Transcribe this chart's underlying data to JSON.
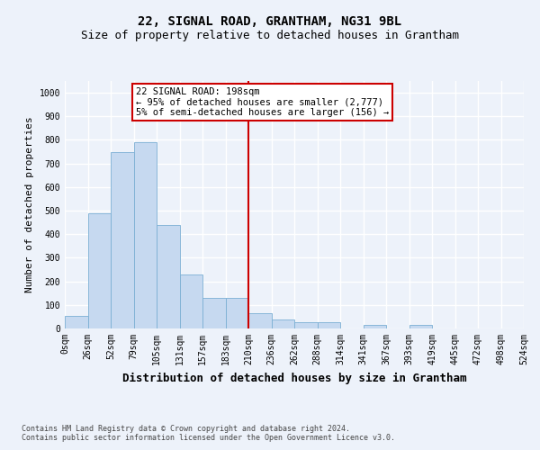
{
  "title": "22, SIGNAL ROAD, GRANTHAM, NG31 9BL",
  "subtitle": "Size of property relative to detached houses in Grantham",
  "xlabel": "Distribution of detached houses by size in Grantham",
  "ylabel": "Number of detached properties",
  "footnote1": "Contains HM Land Registry data © Crown copyright and database right 2024.",
  "footnote2": "Contains public sector information licensed under the Open Government Licence v3.0.",
  "bin_labels": [
    "0sqm",
    "26sqm",
    "52sqm",
    "79sqm",
    "105sqm",
    "131sqm",
    "157sqm",
    "183sqm",
    "210sqm",
    "236sqm",
    "262sqm",
    "288sqm",
    "314sqm",
    "341sqm",
    "367sqm",
    "393sqm",
    "419sqm",
    "445sqm",
    "472sqm",
    "498sqm",
    "524sqm"
  ],
  "bar_values": [
    55,
    490,
    750,
    790,
    440,
    230,
    130,
    130,
    65,
    40,
    25,
    25,
    0,
    15,
    0,
    15,
    0,
    0,
    0,
    0
  ],
  "bar_color": "#c6d9f0",
  "bar_edge_color": "#7bafd4",
  "vline_x": 8.0,
  "vline_color": "#cc0000",
  "ylim": [
    0,
    1050
  ],
  "yticks": [
    0,
    100,
    200,
    300,
    400,
    500,
    600,
    700,
    800,
    900,
    1000
  ],
  "annotation_text": "22 SIGNAL ROAD: 198sqm\n← 95% of detached houses are smaller (2,777)\n5% of semi-detached houses are larger (156) →",
  "annotation_box_color": "#ffffff",
  "annotation_box_edge": "#cc0000",
  "bg_color": "#edf2fa",
  "grid_color": "#ffffff",
  "title_fontsize": 10,
  "subtitle_fontsize": 9,
  "xlabel_fontsize": 9,
  "ylabel_fontsize": 8,
  "tick_fontsize": 7,
  "annot_fontsize": 7.5
}
